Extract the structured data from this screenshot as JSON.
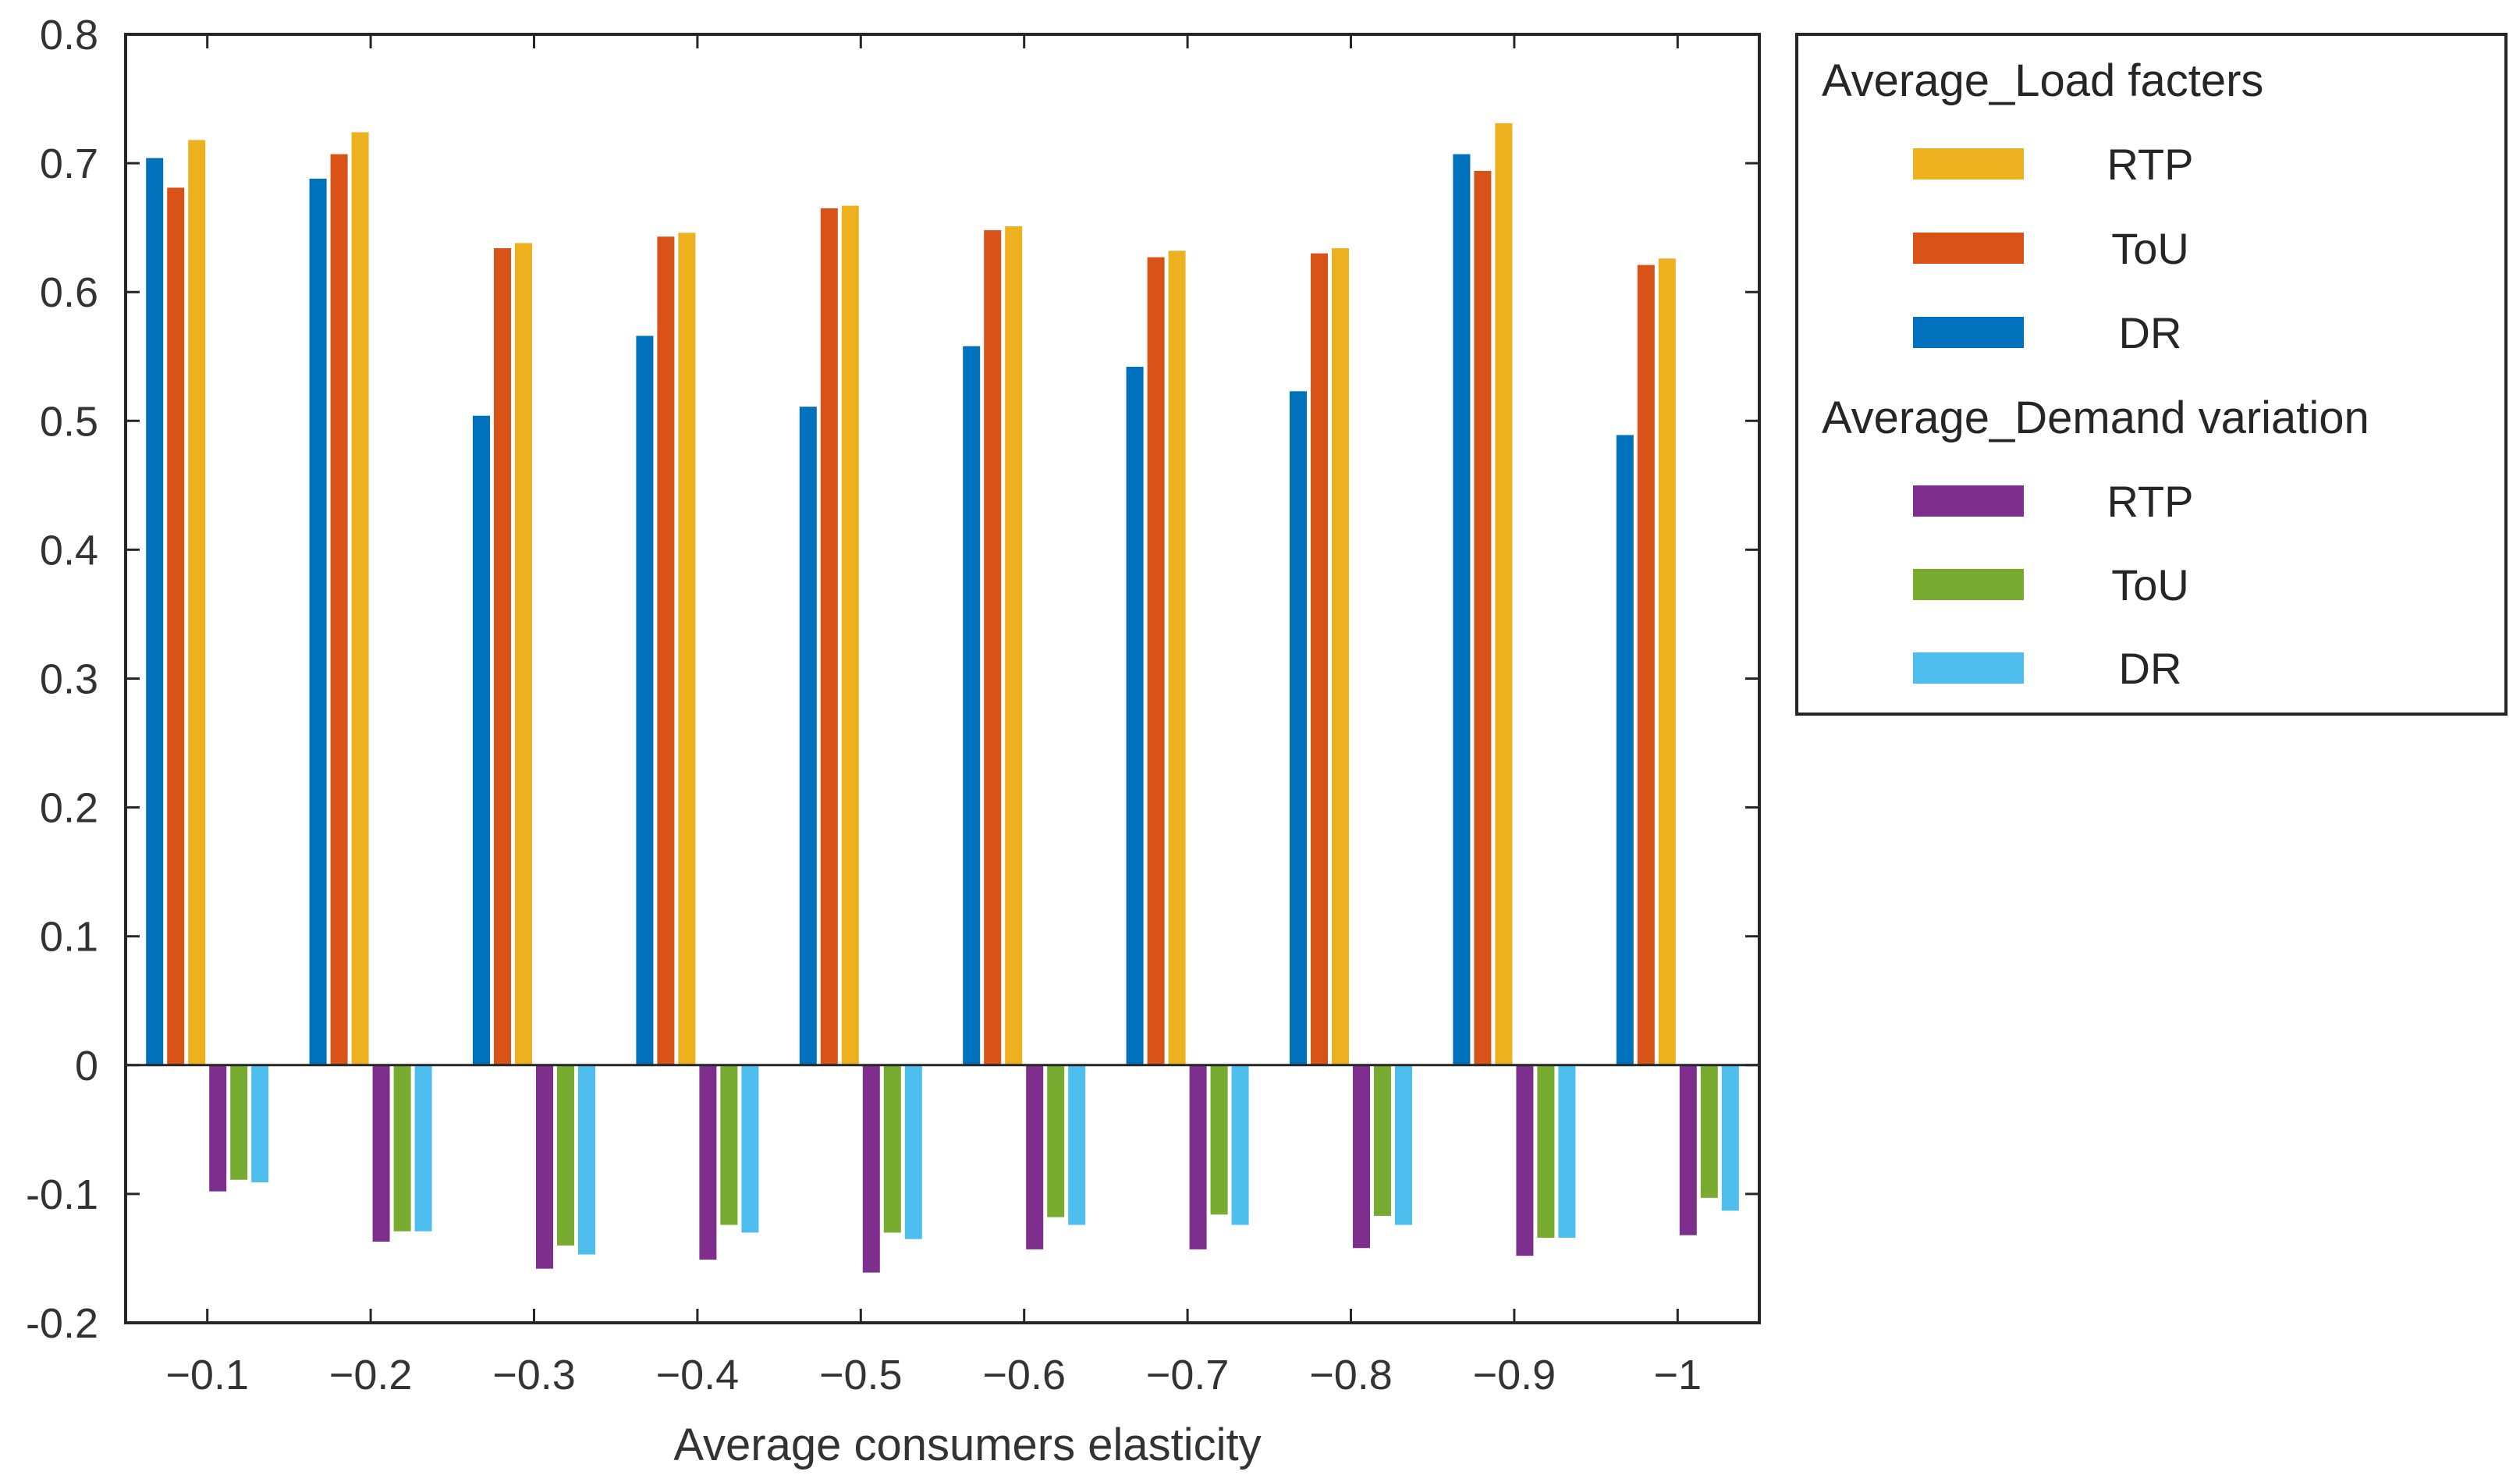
{
  "chart_data": {
    "type": "bar",
    "xlabel": "Average consumers elasticity",
    "ylabel": "",
    "ylim": [
      -0.2,
      0.8
    ],
    "yticks": [
      "0.8",
      "0.7",
      "0.6",
      "0.5",
      "0.4",
      "0.3",
      "0.2",
      "0.1",
      "0",
      "-0.1",
      "-0.2"
    ],
    "ytick_values": [
      0.8,
      0.7,
      0.6,
      0.5,
      0.4,
      0.3,
      0.2,
      0.1,
      0,
      -0.1,
      -0.2
    ],
    "categories": [
      "−0.1",
      "−0.2",
      "−0.3",
      "−0.4",
      "−0.5",
      "−0.6",
      "−0.7",
      "−0.8",
      "−0.9",
      "−1"
    ],
    "grid": false,
    "legend_position": "outside-right",
    "legend_groups": [
      {
        "title": "Average_Load facters",
        "series": [
          {
            "name": "RTP",
            "color": "#EDB120",
            "values": [
              0.718,
              0.724,
              0.638,
              0.646,
              0.667,
              0.651,
              0.632,
              0.634,
              0.731,
              0.626
            ]
          },
          {
            "name": "ToU",
            "color": "#D95319",
            "values": [
              0.681,
              0.707,
              0.634,
              0.643,
              0.665,
              0.648,
              0.627,
              0.63,
              0.694,
              0.621
            ]
          },
          {
            "name": "DR",
            "color": "#0072BD",
            "values": [
              0.704,
              0.688,
              0.504,
              0.566,
              0.511,
              0.558,
              0.542,
              0.523,
              0.707,
              0.489
            ]
          }
        ]
      },
      {
        "title": "Average_Demand variation",
        "series": [
          {
            "name": "RTP",
            "color": "#7E2F8E",
            "values": [
              -0.098,
              -0.137,
              -0.158,
              -0.151,
              -0.161,
              -0.143,
              -0.143,
              -0.142,
              -0.148,
              -0.132
            ]
          },
          {
            "name": "ToU",
            "color": "#77AC30",
            "values": [
              -0.089,
              -0.129,
              -0.14,
              -0.124,
              -0.13,
              -0.118,
              -0.116,
              -0.117,
              -0.134,
              -0.103
            ]
          },
          {
            "name": "DR",
            "color": "#4DBEEE",
            "values": [
              -0.091,
              -0.129,
              -0.147,
              -0.13,
              -0.135,
              -0.124,
              -0.124,
              -0.124,
              -0.134,
              -0.113
            ]
          }
        ]
      }
    ],
    "bar_order": [
      {
        "group": 0,
        "series": 2
      },
      {
        "group": 0,
        "series": 1
      },
      {
        "group": 0,
        "series": 0
      },
      {
        "group": 1,
        "series": 0
      },
      {
        "group": 1,
        "series": 1
      },
      {
        "group": 1,
        "series": 2
      }
    ]
  }
}
